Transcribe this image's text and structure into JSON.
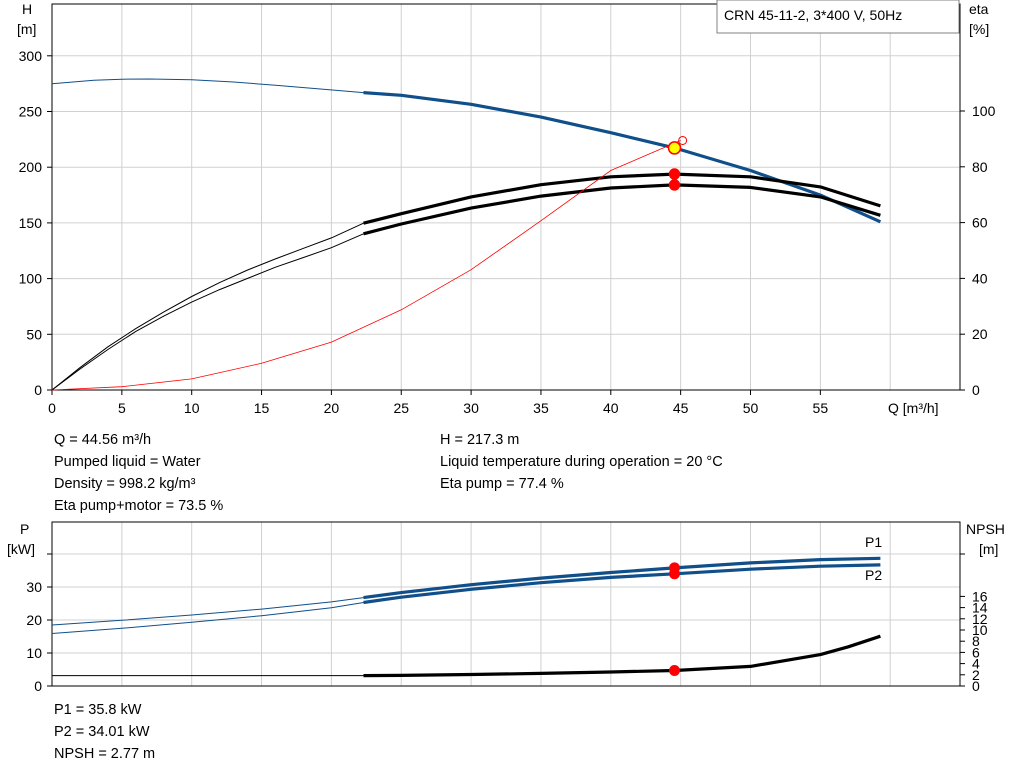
{
  "title": "CRN 45-11-2, 3*400 V, 50Hz",
  "colors": {
    "blue": "#104f8a",
    "black": "#000000",
    "red": "#ff0000",
    "grid": "#d0d0d0",
    "duty_fill": "#ffff00"
  },
  "info_top_left": [
    "Q = 44.56 m³/h",
    "Pumped liquid = Water",
    "Density = 998.2 kg/m³",
    "Eta pump+motor = 73.5 %"
  ],
  "info_top_right": [
    "H = 217.3 m",
    "Liquid temperature during operation = 20 °C",
    "Eta pump = 77.4 %"
  ],
  "info_bottom": [
    "P1 = 35.8 kW",
    "P2 = 34.01 kW",
    "NPSH = 2.77 m"
  ],
  "chart_data": [
    {
      "type": "line",
      "name": "head-efficiency",
      "xlabel": "Q [m³/h]",
      "ylabel_left": [
        "H",
        "[m]"
      ],
      "ylabel_right": [
        "eta",
        "[%]"
      ],
      "xlim": [
        0,
        65
      ],
      "ylim_left": [
        0,
        300
      ],
      "ylim_right": [
        0,
        120
      ],
      "x_ticks": [
        0,
        5,
        10,
        15,
        20,
        25,
        30,
        35,
        40,
        45,
        50,
        55
      ],
      "y_ticks_left": [
        0,
        50,
        100,
        150,
        200,
        250,
        300
      ],
      "y_ticks_right": [
        0,
        20,
        40,
        60,
        80,
        100
      ],
      "grid": true,
      "series": [
        {
          "axis": "left",
          "color": "#104f8a",
          "thin": {
            "x": [
              0,
              3,
              5,
              7,
              10,
              13,
              16,
              19,
              22.3
            ],
            "y": [
              275,
              278,
              279,
              279.2,
              278.5,
              276.5,
              273.5,
              270.5,
              267
            ]
          },
          "thick": {
            "x": [
              22.3,
              25,
              30,
              35,
              40,
              44.56,
              50,
              55,
              59.3
            ],
            "y": [
              267,
              264.5,
              256.5,
              245,
              231,
              217.3,
              197,
              175,
              151
            ]
          }
        },
        {
          "axis": "right",
          "color": "#000000",
          "thin": {
            "x": [
              0,
              2,
              4,
              6,
              8,
              10,
              12,
              14,
              16,
              18,
              20,
              22.3
            ],
            "y": [
              0,
              8,
              15.5,
              22,
              28,
              33.5,
              38.5,
              43,
              47,
              50.8,
              54.5,
              59.8
            ]
          },
          "thick": {
            "x": [
              22.3,
              25,
              30,
              35,
              40,
              44.56,
              50,
              55,
              59.3
            ],
            "y": [
              59.8,
              63.2,
              69.2,
              73.6,
              76.4,
              77.4,
              76.4,
              72.8,
              66
            ]
          }
        },
        {
          "axis": "right",
          "color": "#000000",
          "thin": {
            "x": [
              0,
              2,
              4,
              6,
              8,
              10,
              12,
              14,
              16,
              18,
              20,
              22.3
            ],
            "y": [
              0,
              7.5,
              14.5,
              21,
              26.5,
              31.5,
              36,
              40,
              44,
              47.5,
              51,
              56
            ]
          },
          "thick": {
            "x": [
              22.3,
              25,
              30,
              35,
              40,
              44.56,
              50,
              55,
              59.3
            ],
            "y": [
              56,
              59.5,
              65.2,
              69.5,
              72.4,
              73.5,
              72.6,
              69.2,
              62.6
            ]
          }
        },
        {
          "axis": "left",
          "color": "#ff0000",
          "thin_only": true,
          "thin": {
            "x": [
              0,
              5,
              10,
              15,
              20,
              25,
              30,
              35,
              40,
              45
            ],
            "y": [
              0,
              3,
              10,
              24,
              43,
              72,
              108,
              152,
              197,
              224
            ]
          }
        }
      ],
      "points": [
        {
          "x": 44.56,
          "y": 217.3,
          "axis": "left",
          "color": "#ffff00",
          "stroke": "#ff0000"
        },
        {
          "x": 44.56,
          "y": 77.4,
          "axis": "right",
          "color": "#ff0000"
        },
        {
          "x": 44.56,
          "y": 73.5,
          "axis": "right",
          "color": "#ff0000"
        }
      ]
    },
    {
      "type": "line",
      "name": "power-npsh",
      "ylabel_left": [
        "P",
        "[kW]"
      ],
      "ylabel_right": [
        "NPSH",
        "[m]"
      ],
      "xlim": [
        0,
        65
      ],
      "ylim_left": [
        0,
        45
      ],
      "ylim_right": [
        0,
        30
      ],
      "y_ticks_left": [
        0,
        10,
        20,
        30
      ],
      "y_ticks_right": [
        0,
        2,
        4,
        6,
        8,
        10,
        12,
        14,
        16
      ],
      "grid": true,
      "series_labels": [
        "P1",
        "P2"
      ],
      "series": [
        {
          "axis": "left",
          "color": "#104f8a",
          "label": "P1",
          "thin": {
            "x": [
              0,
              5,
              10,
              15,
              20,
              22.3
            ],
            "y": [
              18.5,
              19.9,
              21.5,
              23.3,
              25.5,
              26.8
            ]
          },
          "thick": {
            "x": [
              22.3,
              25,
              30,
              35,
              40,
              44.56,
              50,
              55,
              59.3
            ],
            "y": [
              26.8,
              28.3,
              30.7,
              32.7,
              34.4,
              35.8,
              37.3,
              38.3,
              38.7
            ]
          }
        },
        {
          "axis": "left",
          "color": "#104f8a",
          "label": "P2",
          "thin": {
            "x": [
              0,
              5,
              10,
              15,
              20,
              22.3
            ],
            "y": [
              15.9,
              17.5,
              19.3,
              21.3,
              23.7,
              25.3
            ]
          },
          "thick": {
            "x": [
              22.3,
              25,
              30,
              35,
              40,
              44.56,
              50,
              55,
              59.3
            ],
            "y": [
              25.3,
              26.9,
              29.3,
              31.3,
              32.9,
              34.01,
              35.4,
              36.3,
              36.7
            ]
          }
        },
        {
          "axis": "right",
          "color": "#000000",
          "thin": {
            "x": [
              0,
              10,
              20,
              22.3
            ],
            "y": [
              1.85,
              1.85,
              1.85,
              1.85
            ]
          },
          "thick": {
            "x": [
              22.3,
              25,
              30,
              35,
              40,
              44.56,
              50,
              55,
              57,
              59.3
            ],
            "y": [
              1.85,
              1.9,
              2.05,
              2.25,
              2.5,
              2.77,
              3.5,
              5.6,
              7.0,
              8.9
            ]
          }
        }
      ],
      "points": [
        {
          "x": 44.56,
          "y": 35.8,
          "axis": "left",
          "color": "#ff0000"
        },
        {
          "x": 44.56,
          "y": 34.01,
          "axis": "left",
          "color": "#ff0000"
        },
        {
          "x": 44.56,
          "y": 2.77,
          "axis": "right",
          "color": "#ff0000"
        }
      ]
    }
  ]
}
